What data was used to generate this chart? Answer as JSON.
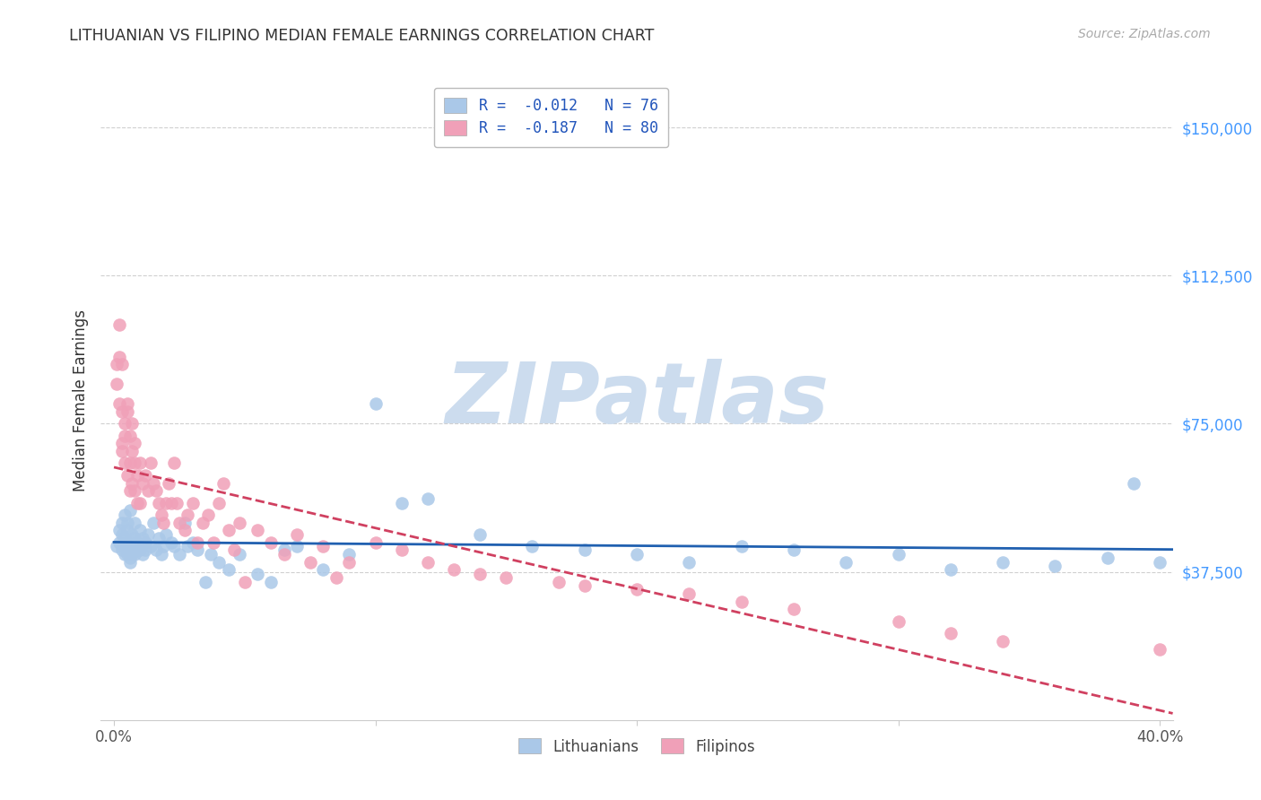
{
  "title": "LITHUANIAN VS FILIPINO MEDIAN FEMALE EARNINGS CORRELATION CHART",
  "source": "Source: ZipAtlas.com",
  "ylabel": "Median Female Earnings",
  "xlabel": "",
  "watermark": "ZIPatlas",
  "xlim": [
    -0.005,
    0.405
  ],
  "ylim": [
    0,
    162000
  ],
  "xticks": [
    0.0,
    0.1,
    0.2,
    0.3,
    0.4
  ],
  "xticklabels": [
    "0.0%",
    "",
    "",
    "",
    "40.0%"
  ],
  "yticks": [
    37500,
    75000,
    112500,
    150000
  ],
  "yticklabels": [
    "$37,500",
    "$75,000",
    "$112,500",
    "$150,000"
  ],
  "grid_color": "#d0d0d0",
  "background_color": "#ffffff",
  "lithuanian_color": "#aac8e8",
  "filipino_color": "#f0a0b8",
  "lithuanian_line_color": "#2060b0",
  "filipino_line_color": "#d04060",
  "legend_color": "#2255bb",
  "R_lithuanian": -0.012,
  "N_lithuanian": 76,
  "R_filipino": -0.187,
  "N_filipino": 80,
  "watermark_color": "#ccdcee",
  "title_color": "#333333",
  "source_color": "#aaaaaa",
  "ylabel_color": "#333333",
  "ytick_color": "#4499ff",
  "xtick_color": "#555555",
  "lithuanian_x": [
    0.001,
    0.002,
    0.002,
    0.003,
    0.003,
    0.003,
    0.004,
    0.004,
    0.004,
    0.004,
    0.005,
    0.005,
    0.005,
    0.005,
    0.006,
    0.006,
    0.006,
    0.006,
    0.007,
    0.007,
    0.007,
    0.008,
    0.008,
    0.008,
    0.009,
    0.009,
    0.01,
    0.01,
    0.011,
    0.011,
    0.012,
    0.012,
    0.013,
    0.014,
    0.015,
    0.016,
    0.017,
    0.018,
    0.019,
    0.02,
    0.022,
    0.023,
    0.025,
    0.027,
    0.028,
    0.03,
    0.032,
    0.035,
    0.037,
    0.04,
    0.044,
    0.048,
    0.055,
    0.06,
    0.065,
    0.07,
    0.08,
    0.09,
    0.1,
    0.11,
    0.12,
    0.14,
    0.16,
    0.18,
    0.2,
    0.22,
    0.24,
    0.26,
    0.28,
    0.3,
    0.32,
    0.34,
    0.36,
    0.38,
    0.39,
    0.4
  ],
  "lithuanian_y": [
    44000,
    48000,
    45000,
    50000,
    43000,
    47000,
    52000,
    44000,
    46000,
    42000,
    48000,
    42000,
    45000,
    50000,
    53000,
    41000,
    44000,
    40000,
    47000,
    43000,
    42000,
    46000,
    50000,
    42000,
    45000,
    44000,
    48000,
    43000,
    46000,
    42000,
    45000,
    43000,
    47000,
    44000,
    50000,
    43000,
    46000,
    42000,
    44000,
    47000,
    45000,
    44000,
    42000,
    50000,
    44000,
    45000,
    43000,
    35000,
    42000,
    40000,
    38000,
    42000,
    37000,
    35000,
    43000,
    44000,
    38000,
    42000,
    80000,
    55000,
    56000,
    47000,
    44000,
    43000,
    42000,
    40000,
    44000,
    43000,
    40000,
    42000,
    38000,
    40000,
    39000,
    41000,
    60000,
    40000
  ],
  "filipino_x": [
    0.001,
    0.001,
    0.002,
    0.002,
    0.002,
    0.003,
    0.003,
    0.003,
    0.003,
    0.004,
    0.004,
    0.004,
    0.005,
    0.005,
    0.005,
    0.006,
    0.006,
    0.006,
    0.007,
    0.007,
    0.007,
    0.008,
    0.008,
    0.008,
    0.009,
    0.009,
    0.01,
    0.01,
    0.011,
    0.012,
    0.013,
    0.014,
    0.015,
    0.016,
    0.017,
    0.018,
    0.019,
    0.02,
    0.021,
    0.022,
    0.023,
    0.024,
    0.025,
    0.027,
    0.028,
    0.03,
    0.032,
    0.034,
    0.036,
    0.038,
    0.04,
    0.042,
    0.044,
    0.046,
    0.048,
    0.05,
    0.055,
    0.06,
    0.065,
    0.07,
    0.075,
    0.08,
    0.085,
    0.09,
    0.1,
    0.11,
    0.12,
    0.13,
    0.14,
    0.15,
    0.17,
    0.18,
    0.2,
    0.22,
    0.24,
    0.26,
    0.3,
    0.32,
    0.34,
    0.4
  ],
  "filipino_y": [
    90000,
    85000,
    92000,
    80000,
    100000,
    78000,
    90000,
    70000,
    68000,
    75000,
    72000,
    65000,
    78000,
    62000,
    80000,
    72000,
    65000,
    58000,
    68000,
    60000,
    75000,
    65000,
    58000,
    70000,
    62000,
    55000,
    65000,
    55000,
    60000,
    62000,
    58000,
    65000,
    60000,
    58000,
    55000,
    52000,
    50000,
    55000,
    60000,
    55000,
    65000,
    55000,
    50000,
    48000,
    52000,
    55000,
    45000,
    50000,
    52000,
    45000,
    55000,
    60000,
    48000,
    43000,
    50000,
    35000,
    48000,
    45000,
    42000,
    47000,
    40000,
    44000,
    36000,
    40000,
    45000,
    43000,
    40000,
    38000,
    37000,
    36000,
    35000,
    34000,
    33000,
    32000,
    30000,
    28000,
    25000,
    22000,
    20000,
    18000
  ]
}
